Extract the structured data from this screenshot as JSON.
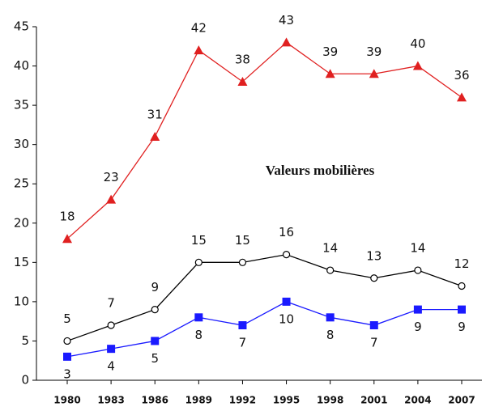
{
  "chart_data": {
    "type": "line",
    "categories": [
      "1980",
      "1983",
      "1986",
      "1989",
      "1992",
      "1995",
      "1998",
      "2001",
      "2004",
      "2007"
    ],
    "series": [
      {
        "name": "Valeurs mobilières",
        "color": "#e02020",
        "marker": "triangle",
        "values": [
          18,
          23,
          31,
          42,
          38,
          43,
          39,
          39,
          40,
          36
        ]
      },
      {
        "color": "#000000",
        "marker": "circle",
        "values": [
          5,
          7,
          9,
          15,
          15,
          16,
          14,
          13,
          14,
          12
        ]
      },
      {
        "color": "#1a1aff",
        "marker": "square",
        "values": [
          3,
          4,
          5,
          8,
          7,
          10,
          8,
          7,
          9,
          9
        ]
      }
    ],
    "ylim": [
      0,
      45
    ],
    "yticks": [
      0,
      5,
      10,
      15,
      20,
      25,
      30,
      35,
      40,
      45
    ],
    "grid": false
  }
}
